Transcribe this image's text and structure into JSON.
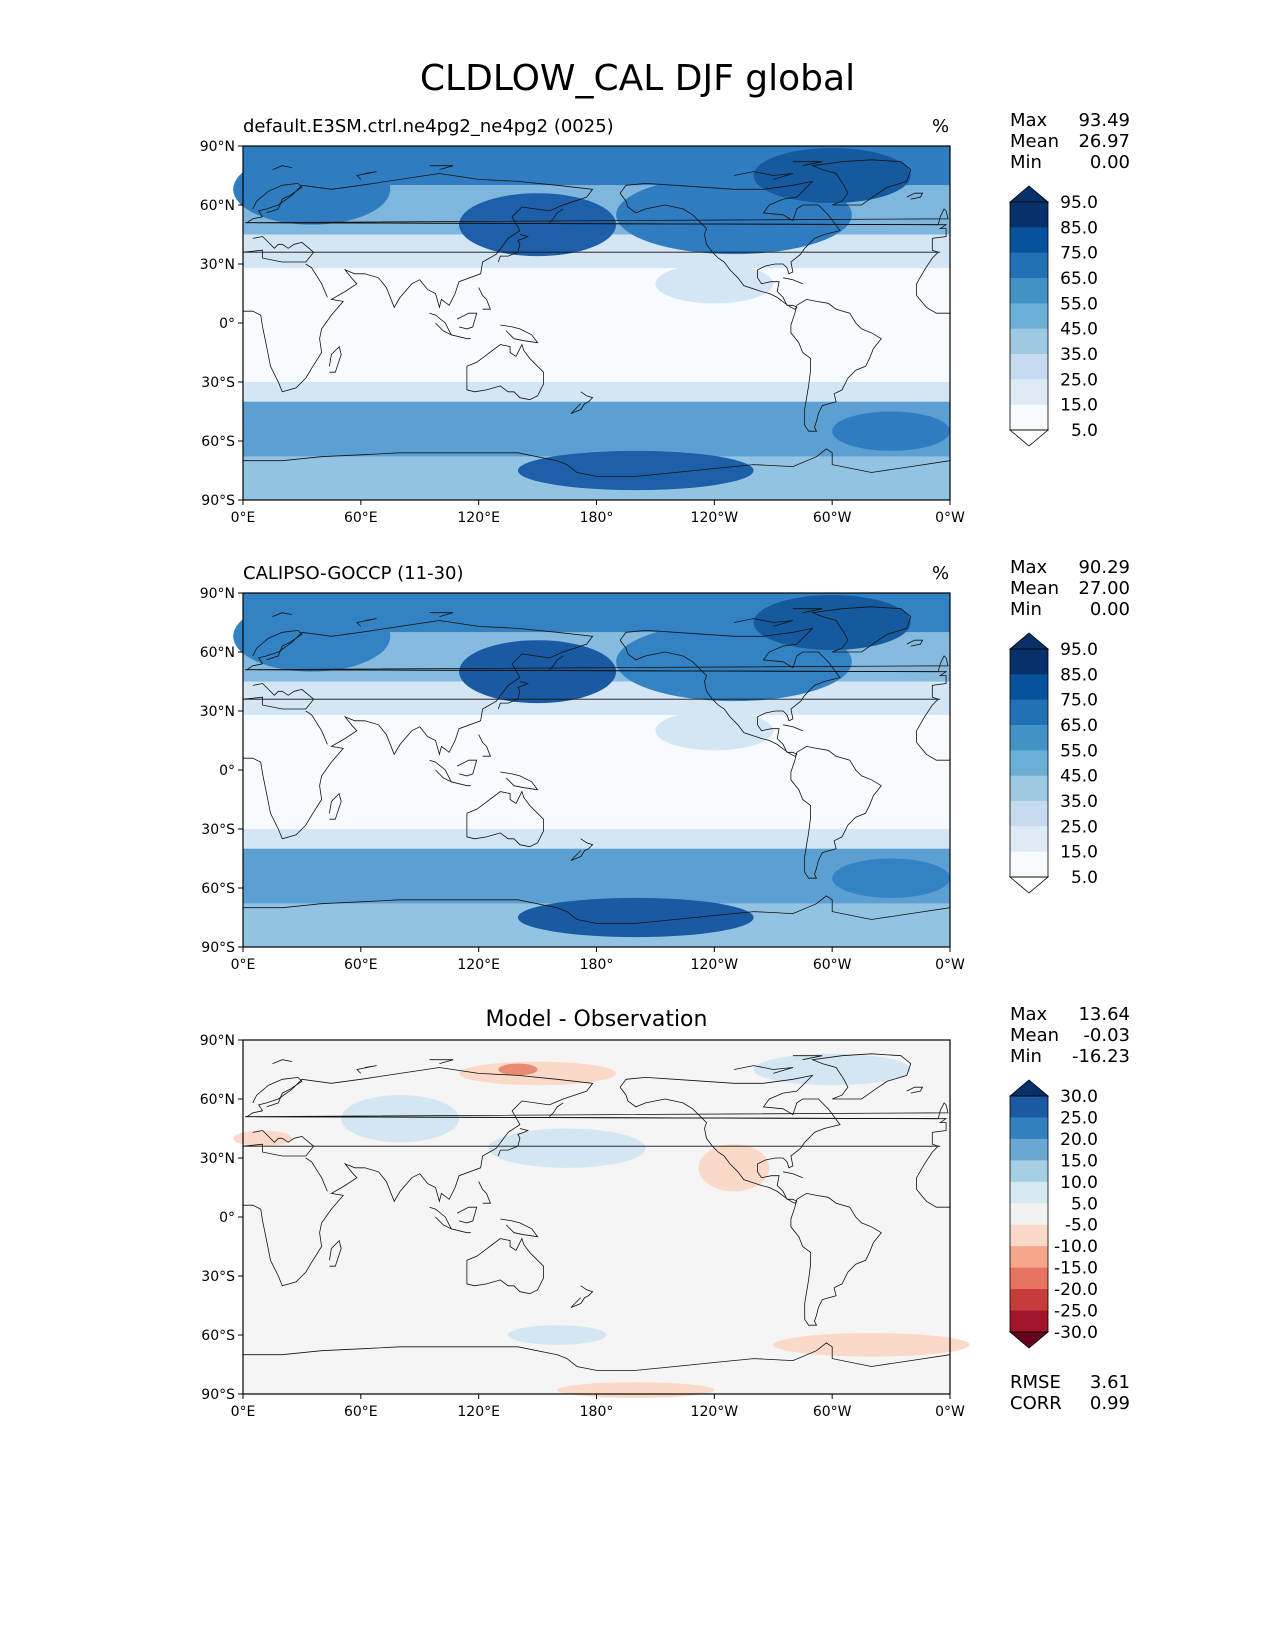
{
  "figure": {
    "title": "CLDLOW_CAL DJF global"
  },
  "axes": {
    "lat_ticks": [
      "90°N",
      "60°N",
      "30°N",
      "0°",
      "30°S",
      "60°S",
      "90°S"
    ],
    "lon_ticks": [
      "0°E",
      "60°E",
      "120°E",
      "180°",
      "120°W",
      "60°W",
      "0°W"
    ]
  },
  "panels": [
    {
      "title": "default.E3SM.ctrl.ne4pg2_ne4pg2 (0025)",
      "unit": "%",
      "stats": {
        "max_label": "Max",
        "max": "93.49",
        "mean_label": "Mean",
        "mean": "26.97",
        "min_label": "Min",
        "min": "0.00"
      },
      "colorbar": {
        "labels": [
          "95.0",
          "85.0",
          "75.0",
          "65.0",
          "55.0",
          "45.0",
          "35.0",
          "25.0",
          "15.0",
          "5.0"
        ],
        "colors": [
          "#08306b",
          "#08519c",
          "#2171b5",
          "#4292c6",
          "#6baed6",
          "#9ecae1",
          "#c6dbef",
          "#deebf7",
          "#f7fbff"
        ],
        "over": "#08306b",
        "under": "#ffffff"
      },
      "colors": {
        "band_north": "#2f7dc0",
        "band_mid": "#7fb6dd",
        "subtrop": "#d4e5f4",
        "tropics": "#f7fbff",
        "band_south": "#5c9fd2",
        "antarctic": "#92c3e2",
        "hotspot_asia": "#1d5fa8",
        "hotspot_greenland": "#155a9e"
      }
    },
    {
      "title": "CALIPSO-GOCCP (11-30)",
      "unit": "%",
      "stats": {
        "max_label": "Max",
        "max": "90.29",
        "mean_label": "Mean",
        "mean": "27.00",
        "min_label": "Min",
        "min": "0.00"
      },
      "colorbar": {
        "labels": [
          "95.0",
          "85.0",
          "75.0",
          "65.0",
          "55.0",
          "45.0",
          "35.0",
          "25.0",
          "15.0",
          "5.0"
        ],
        "colors": [
          "#08306b",
          "#08519c",
          "#2171b5",
          "#4292c6",
          "#6baed6",
          "#9ecae1",
          "#c6dbef",
          "#deebf7",
          "#f7fbff"
        ],
        "over": "#08306b",
        "under": "#ffffff"
      },
      "colors": {
        "band_north": "#3383c4",
        "band_mid": "#86badf",
        "subtrop": "#d4e5f4",
        "tropics": "#f7fbff",
        "band_south": "#5c9fd2",
        "antarctic": "#92c3e2",
        "hotspot_asia": "#1a5aa3",
        "hotspot_greenland": "#155a9e"
      }
    },
    {
      "title": "Model - Observation",
      "unit": "",
      "stats": {
        "max_label": "Max",
        "max": "13.64",
        "mean_label": "Mean",
        "mean": "-0.03",
        "min_label": "Min",
        "min": "-16.23"
      },
      "extra": {
        "rmse_label": "RMSE",
        "rmse": "3.61",
        "corr_label": "CORR",
        "corr": "0.99"
      },
      "colorbar": {
        "labels": [
          "30.0",
          "25.0",
          "20.0",
          "15.0",
          "10.0",
          "5.0",
          "-5.0",
          "-10.0",
          "-15.0",
          "-20.0",
          "-25.0",
          "-30.0"
        ],
        "colors": [
          "#1b5aa3",
          "#3380bf",
          "#6aa8d2",
          "#a6cfe4",
          "#d6e8f2",
          "#f2f2f2",
          "#fbd9c8",
          "#f4a58a",
          "#e4745f",
          "#c63b3b",
          "#a2152b"
        ],
        "over": "#08306b",
        "under": "#67001f"
      },
      "colors": {
        "background": "#f5f5f5",
        "pos": "#d4e6f1",
        "neg": "#fbd9c8",
        "neg_strong": "#e98a72"
      }
    }
  ]
}
